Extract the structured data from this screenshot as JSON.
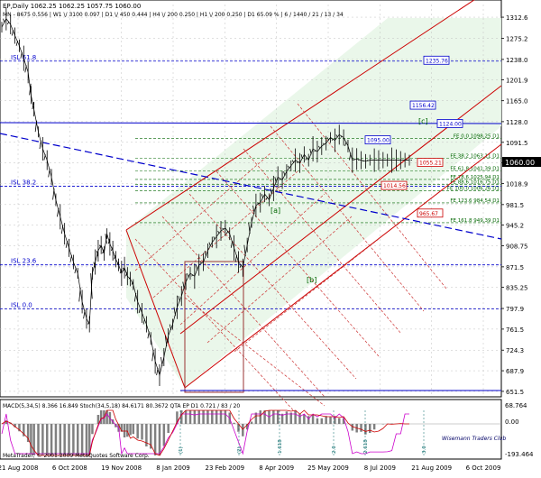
{
  "header": {
    "symbol_line": "EP,Daily  1062.25 1062.25 1057.75 1060.00",
    "indicator_line": "MN - 8675  0.556 | W1 \\/ 3100  0.097 | D1 \\/ 450  0.444 | H4 \\/ 200  0.250 | H1 \\/ 200  0.250 | D1  65.09 % | 6 / 1440 / 21 / 13 / 34"
  },
  "subwindow": {
    "label": "MACD(5,34,5) 8.366 16.849  Stoch(34,5,18) 84.6171 80.3672  QTA EP D1  0.721 / 83 / 20",
    "scale": [
      "68.764",
      "0.00",
      "-193.464"
    ]
  },
  "footer": {
    "copyright": "MetaTrader, © 2001-2009 MetaQuotes Software Corp.",
    "watermark": "Wisemann Traders Club"
  },
  "colors": {
    "price": "#000000",
    "channel": "#cc0000",
    "blue_line": "#0000cc",
    "fib": "#006600",
    "grid": "#c0c0c0",
    "macd": "#808080",
    "signal": "#cc0000",
    "stoch": "#cc00cc"
  },
  "chart_data": {
    "type": "line",
    "title": "EP,Daily",
    "x_ticks": [
      "21 Aug 2008",
      "6 Oct 2008",
      "19 Nov 2008",
      "8 Jan 2009",
      "23 Feb 2009",
      "8 Apr 2009",
      "25 May 2009",
      "8 Jul 2009",
      "21 Aug 2009",
      "6 Oct 2009"
    ],
    "y_ticks": [
      651.5,
      687.9,
      724.3,
      761.5,
      797.9,
      835.25,
      871.5,
      908.75,
      945.2,
      981.5,
      1018.9,
      1055.1,
      1091.5,
      1128.0,
      1165.0,
      1201.9,
      1238.0,
      1275.2,
      1312.6
    ],
    "ylim": [
      645,
      1335
    ],
    "last_price": 1060.0,
    "grid": true,
    "price_series": {
      "name": "EP",
      "x": [
        0,
        3,
        6,
        9,
        12,
        15,
        18,
        20,
        22,
        25,
        28,
        31,
        34,
        37,
        40,
        43,
        46,
        49,
        52,
        55,
        58,
        60,
        62,
        64,
        66,
        68,
        70,
        72,
        74,
        76,
        78,
        80,
        82,
        84,
        86,
        88,
        90,
        93,
        96,
        99,
        102,
        105,
        108,
        111,
        114,
        117,
        120,
        123,
        126,
        129,
        132,
        135,
        138,
        141,
        144,
        147,
        150,
        153,
        156,
        159,
        162,
        165,
        168,
        171,
        174,
        177,
        180,
        183,
        186,
        189,
        192,
        195,
        198,
        201,
        204,
        207,
        210,
        213,
        216,
        219,
        222,
        225,
        228,
        231,
        234,
        237,
        240,
        243,
        246,
        249,
        252,
        255,
        258,
        261,
        264,
        267,
        270,
        273,
        276,
        279
      ],
      "y": [
        1295,
        1310,
        1300,
        1280,
        1262,
        1240,
        1215,
        1175,
        1150,
        1110,
        1080,
        1060,
        1030,
        990,
        960,
        930,
        905,
        880,
        860,
        810,
        780,
        770,
        860,
        880,
        900,
        910,
        895,
        930,
        912,
        900,
        885,
        875,
        860,
        870,
        855,
        850,
        840,
        810,
        790,
        770,
        745,
        705,
        680,
        712,
        750,
        770,
        800,
        820,
        845,
        860,
        855,
        875,
        880,
        900,
        915,
        925,
        935,
        940,
        930,
        905,
        880,
        870,
        910,
        950,
        980,
        985,
        1000,
        990,
        1010,
        1030,
        1025,
        1040,
        1050,
        1060,
        1055,
        1070,
        1060,
        1080,
        1075,
        1085,
        1090,
        1100,
        1095,
        1105,
        1100,
        1085,
        1060,
        1062,
        1060,
        1058,
        1060,
        1060,
        1060,
        1060,
        1060,
        1060,
        1060,
        1060,
        1060,
        1060
      ],
      "note_visible_range": "full"
    },
    "horizontal_levels": [
      {
        "label": "ISL 61.8",
        "value": 1235
      },
      {
        "label": "ISL 38.2",
        "value": 1014
      },
      {
        "label": "ISL 23.6",
        "value": 875
      },
      {
        "label": "ISL 0.0",
        "value": 797
      }
    ],
    "fib_expansion": [
      {
        "label": "FE 0.0  1098.25 D1",
        "value": 1098.25
      },
      {
        "label": "FE 38.2  1063.11 D1",
        "value": 1063.11
      },
      {
        "label": "FE 61.8  1041.39 D1",
        "value": 1041.39
      },
      {
        "label": "FE 78.6  1025.94 D1",
        "value": 1025.94
      },
      {
        "label": "FE 88.6  1016.75 D1",
        "value": 1016.75
      },
      {
        "label": "FE 100.0  1006.26 D1",
        "value": 1006.26
      },
      {
        "label": "FE 123.6  984.54 D1",
        "value": 984.54
      },
      {
        "label": "FE 161.8  949.39 D1",
        "value": 949.39
      }
    ],
    "price_tags": [
      {
        "label": "1235.76",
        "value": 1235.76,
        "color": "#0000cc"
      },
      {
        "label": "1156.42",
        "value": 1156.42,
        "color": "#0000cc"
      },
      {
        "label": "1124.00",
        "value": 1124.0,
        "color": "#0000cc"
      },
      {
        "label": "1095.00",
        "value": 1095.0,
        "color": "#0000cc"
      },
      {
        "label": "1055.21",
        "value": 1055.21,
        "color": "#cc0000"
      },
      {
        "label": "1014.56",
        "value": 1014.56,
        "color": "#cc0000"
      },
      {
        "label": "965.67",
        "value": 965.67,
        "color": "#cc0000"
      }
    ],
    "wave_labels": [
      "[a]",
      "[b]",
      "[c]"
    ],
    "lower_wave_labels": [
      "(1)",
      "(2)",
      "1.618",
      "2.0",
      "2.618",
      "3.0"
    ]
  }
}
